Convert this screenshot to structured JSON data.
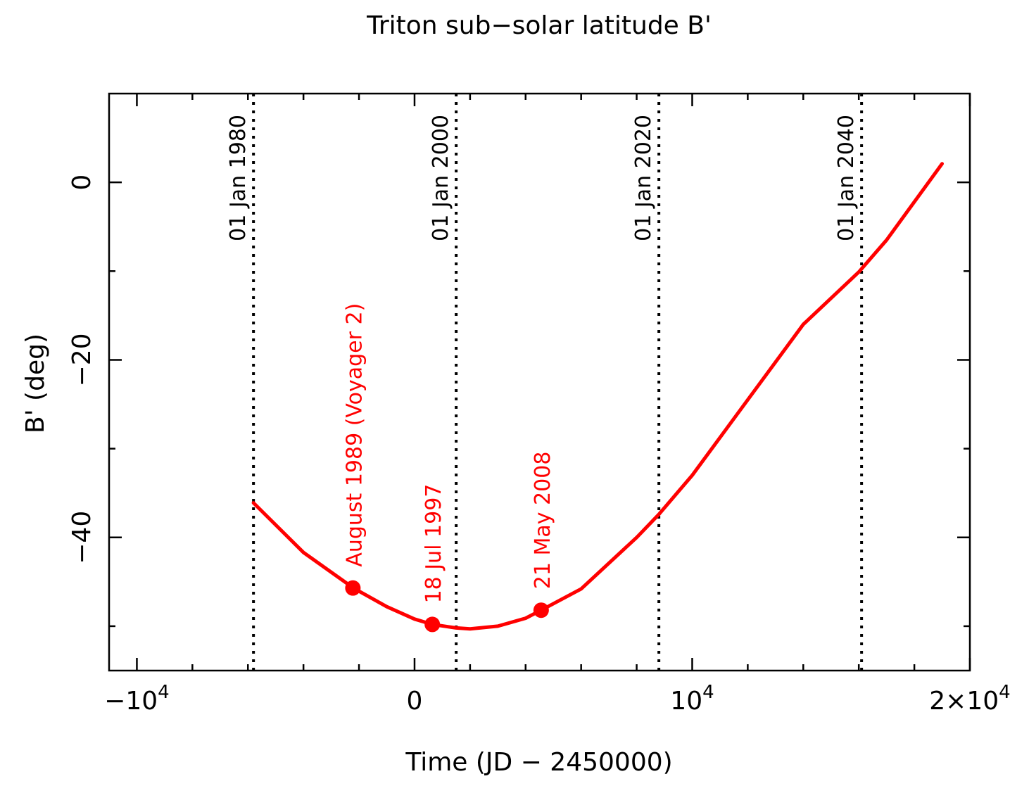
{
  "chart_data": {
    "type": "line",
    "title": "Triton sub−solar latitude B'",
    "xlabel": "Time (JD − 2450000)",
    "ylabel": "B' (deg)",
    "xlim": [
      -11000,
      20000
    ],
    "ylim": [
      -55,
      10
    ],
    "grid": false,
    "line_color": "#ff0000",
    "x_ticks_major": [
      {
        "value": -10000,
        "label": "−10",
        "exp": "4"
      },
      {
        "value": 0,
        "label": "0",
        "exp": ""
      },
      {
        "value": 10000,
        "label": "10",
        "exp": "4"
      },
      {
        "value": 20000,
        "label": "2×10",
        "exp": "4"
      }
    ],
    "x_ticks_minor": [
      -8000,
      -6000,
      -4000,
      -2000,
      2000,
      4000,
      6000,
      8000,
      12000,
      14000,
      16000,
      18000
    ],
    "y_ticks_major": [
      {
        "value": 0,
        "label": "0"
      },
      {
        "value": -20,
        "label": "−20"
      },
      {
        "value": -40,
        "label": "−40"
      }
    ],
    "y_ticks_minor": [
      -10,
      -30,
      -50
    ],
    "series": [
      {
        "x": [
          -5800,
          -4000,
          -2200,
          -1000,
          0,
          640,
          1500,
          2000,
          3000,
          4000,
          4560,
          6000,
          8000,
          8800,
          10000,
          12000,
          14000,
          16000,
          17000,
          19000
        ],
        "y": [
          -36.1,
          -41.7,
          -45.7,
          -47.8,
          -49.2,
          -49.8,
          -50.2,
          -50.3,
          -50.0,
          -49.1,
          -48.2,
          -45.8,
          -40.0,
          -37.4,
          -33.0,
          -24.5,
          -16.0,
          -10.1,
          -6.5,
          2.1
        ]
      }
    ],
    "vertical_lines": [
      {
        "x": -5800,
        "label": "01 Jan 1980"
      },
      {
        "x": 1500,
        "label": "01 Jan 2000"
      },
      {
        "x": 8800,
        "label": "01 Jan 2020"
      },
      {
        "x": 16100,
        "label": "01 Jan 2040"
      }
    ],
    "marked_points": [
      {
        "x": -2220,
        "y": -45.7,
        "label": "August 1989 (Voyager 2)"
      },
      {
        "x": 640,
        "y": -49.8,
        "label": "18 Jul 1997"
      },
      {
        "x": 4560,
        "y": -48.2,
        "label": "21 May 2008"
      }
    ]
  }
}
